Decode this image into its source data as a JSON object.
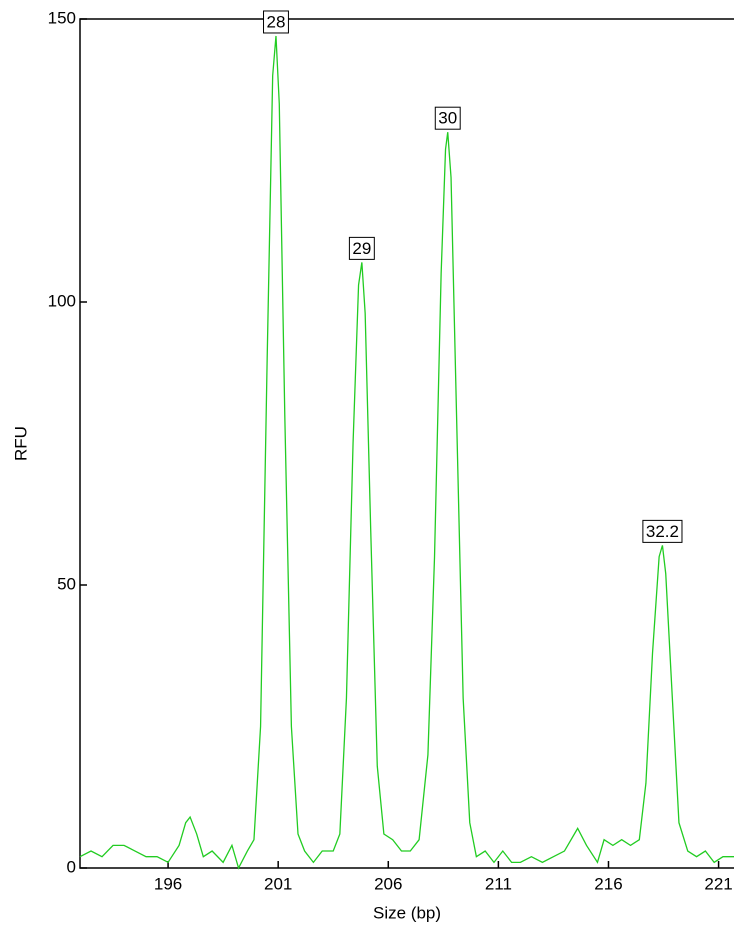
{
  "chart_data": {
    "type": "line",
    "xlabel": "Size (bp)",
    "ylabel": "RFU",
    "xlim": [
      192,
      221.7
    ],
    "ylim": [
      0,
      150
    ],
    "xticks": [
      196,
      201,
      206,
      211,
      216,
      221
    ],
    "yticks": [
      0,
      50,
      100,
      150
    ],
    "series": [
      {
        "color": "#22cc22",
        "x": [
          192,
          192.5,
          193,
          193.5,
          194,
          194.5,
          195,
          195.5,
          196,
          196.5,
          196.8,
          197.0,
          197.3,
          197.6,
          198,
          198.5,
          198.9,
          199.2,
          199.6,
          199.9,
          200.2,
          200.5,
          200.75,
          200.9,
          201.05,
          201.3,
          201.6,
          201.9,
          202.2,
          202.6,
          203,
          203.5,
          203.8,
          204.1,
          204.4,
          204.65,
          204.8,
          204.95,
          205.2,
          205.5,
          205.8,
          206.2,
          206.6,
          207,
          207.4,
          207.8,
          208.1,
          208.4,
          208.6,
          208.7,
          208.85,
          209.1,
          209.4,
          209.7,
          210,
          210.4,
          210.8,
          211.2,
          211.6,
          212,
          212.5,
          213,
          213.5,
          214,
          214.6,
          215,
          215.5,
          215.8,
          216.2,
          216.6,
          217,
          217.4,
          217.7,
          218,
          218.3,
          218.45,
          218.6,
          218.9,
          219.2,
          219.6,
          220,
          220.4,
          220.8,
          221.2,
          221.7
        ],
        "values": [
          2,
          3,
          2,
          4,
          4,
          3,
          2,
          2,
          1,
          4,
          8,
          9,
          6,
          2,
          3,
          1,
          4,
          0,
          3,
          5,
          25,
          90,
          140,
          147,
          135,
          80,
          25,
          6,
          3,
          1,
          3,
          3,
          6,
          30,
          75,
          103,
          107,
          98,
          60,
          18,
          6,
          5,
          3,
          3,
          5,
          20,
          55,
          105,
          127,
          130,
          122,
          80,
          30,
          8,
          2,
          3,
          1,
          3,
          1,
          1,
          2,
          1,
          2,
          3,
          7,
          4,
          1,
          5,
          4,
          5,
          4,
          5,
          15,
          38,
          55,
          57,
          52,
          30,
          8,
          3,
          2,
          3,
          1,
          2,
          2
        ]
      }
    ],
    "peak_labels": [
      {
        "label": "28",
        "x": 200.9,
        "y": 147
      },
      {
        "label": "29",
        "x": 204.8,
        "y": 107
      },
      {
        "label": "30",
        "x": 208.7,
        "y": 130
      },
      {
        "label": "32.2",
        "x": 218.45,
        "y": 57
      }
    ]
  }
}
